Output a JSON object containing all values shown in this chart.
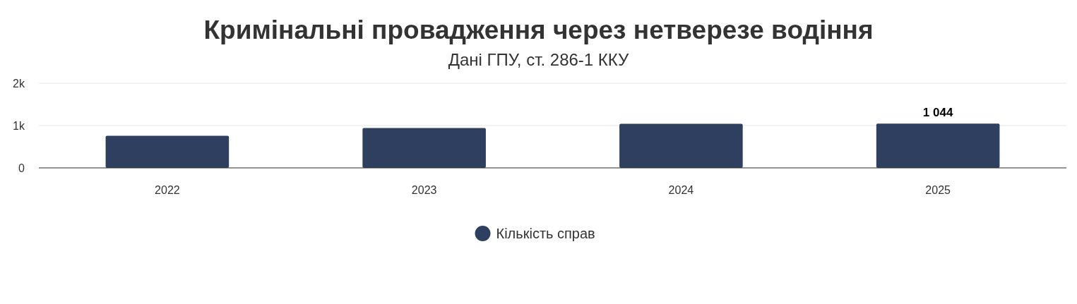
{
  "chart_data": {
    "type": "bar",
    "title": "Кримінальні провадження через нетверезе водіння",
    "subtitle": "Дані ГПУ, ст. 286-1 ККУ",
    "categories": [
      "2022",
      "2023",
      "2024",
      "2025"
    ],
    "series": [
      {
        "name": "Кількість справ",
        "color": "#2e3f5f",
        "values": [
          760,
          940,
          1040,
          1044
        ],
        "value_labels": [
          null,
          null,
          null,
          "1 044"
        ]
      }
    ],
    "ylim": [
      0,
      2000
    ],
    "yticks": [
      0,
      {
        "value": 1000,
        "label": "1k"
      },
      {
        "value": 2000,
        "label": "2k"
      }
    ],
    "grid": "y",
    "legend": "bottom"
  }
}
